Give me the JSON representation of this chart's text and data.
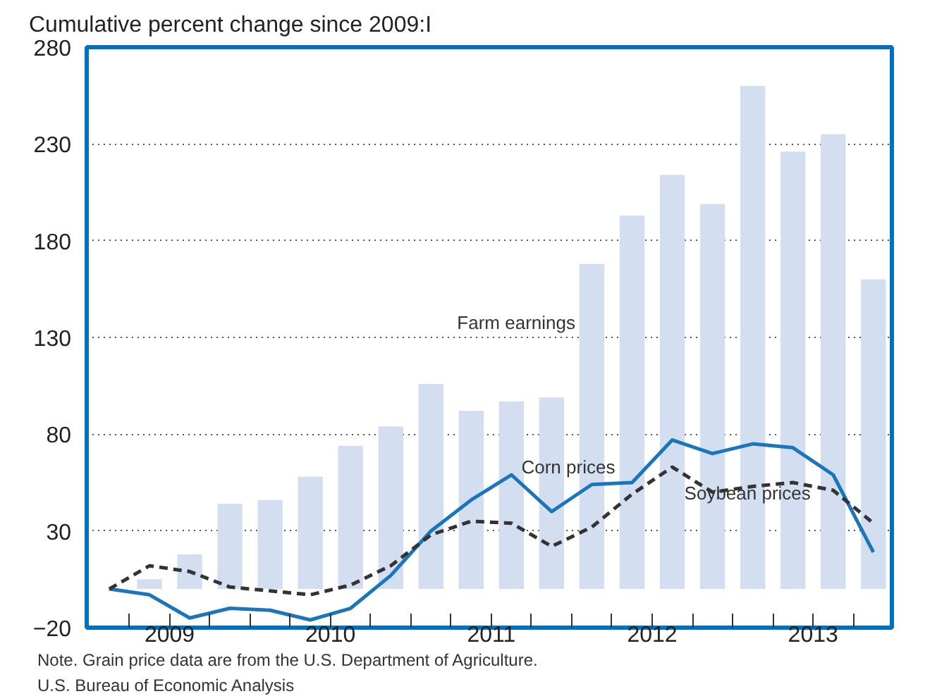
{
  "chart_data": {
    "type": "bar",
    "ylabel": "Cumulative percent change since 2009:I",
    "x": [
      2009.125,
      2009.375,
      2009.625,
      2009.875,
      2010.125,
      2010.375,
      2010.625,
      2010.875,
      2011.125,
      2011.375,
      2011.625,
      2011.875,
      2012.125,
      2012.375,
      2012.625,
      2012.875,
      2013.125,
      2013.375,
      2013.625,
      2013.875
    ],
    "series": [
      {
        "name": "Farm earnings",
        "color": "#d3dff0",
        "values": [
          null,
          5,
          18,
          44,
          46,
          58,
          74,
          84,
          106,
          92,
          97,
          99,
          168,
          193,
          214,
          199,
          260,
          226,
          235,
          160
        ]
      },
      {
        "name": "Corn prices",
        "type": "line",
        "color": "#1a75bb",
        "line_style": "solid",
        "values": [
          0,
          -3,
          -15,
          -10,
          -11,
          -16,
          -10,
          7,
          30,
          46,
          59,
          40,
          54,
          55,
          77,
          70,
          75,
          73,
          59,
          19
        ]
      },
      {
        "name": "Soybean prices",
        "type": "line",
        "color": "#333333",
        "line_style": "dashed",
        "values": [
          0,
          12,
          9,
          1,
          -1,
          -3,
          2,
          12,
          28,
          35,
          34,
          22,
          32,
          49,
          63,
          50,
          53,
          55,
          51,
          34
        ]
      }
    ],
    "xlim": [
      2008.985,
      2013.99
    ],
    "xticks": [
      {
        "value": 2009.25,
        "label": null
      },
      {
        "value": 2009.5,
        "label": "2009"
      },
      {
        "value": 2009.75,
        "label": null
      },
      {
        "value": 2010.0,
        "label": null
      },
      {
        "value": 2010.25,
        "label": null
      },
      {
        "value": 2010.5,
        "label": "2010"
      },
      {
        "value": 2010.75,
        "label": null
      },
      {
        "value": 2011.0,
        "label": null
      },
      {
        "value": 2011.25,
        "label": null
      },
      {
        "value": 2011.5,
        "label": "2011"
      },
      {
        "value": 2011.75,
        "label": null
      },
      {
        "value": 2012.0,
        "label": null
      },
      {
        "value": 2012.25,
        "label": null
      },
      {
        "value": 2012.5,
        "label": "2012"
      },
      {
        "value": 2012.75,
        "label": null
      },
      {
        "value": 2013.0,
        "label": null
      },
      {
        "value": 2013.25,
        "label": null
      },
      {
        "value": 2013.5,
        "label": "2013"
      },
      {
        "value": 2013.75,
        "label": null
      }
    ],
    "ylim": [
      -20,
      280
    ],
    "yticks": [
      {
        "value": -20,
        "label": "−20"
      },
      30,
      80,
      130,
      180,
      230,
      280
    ],
    "grid": "y",
    "legend": false,
    "annotations": [
      "Note. Grain price data are from the U.S. Department of Agriculture.",
      "U.S. Bureau of Economic Analysis"
    ]
  }
}
